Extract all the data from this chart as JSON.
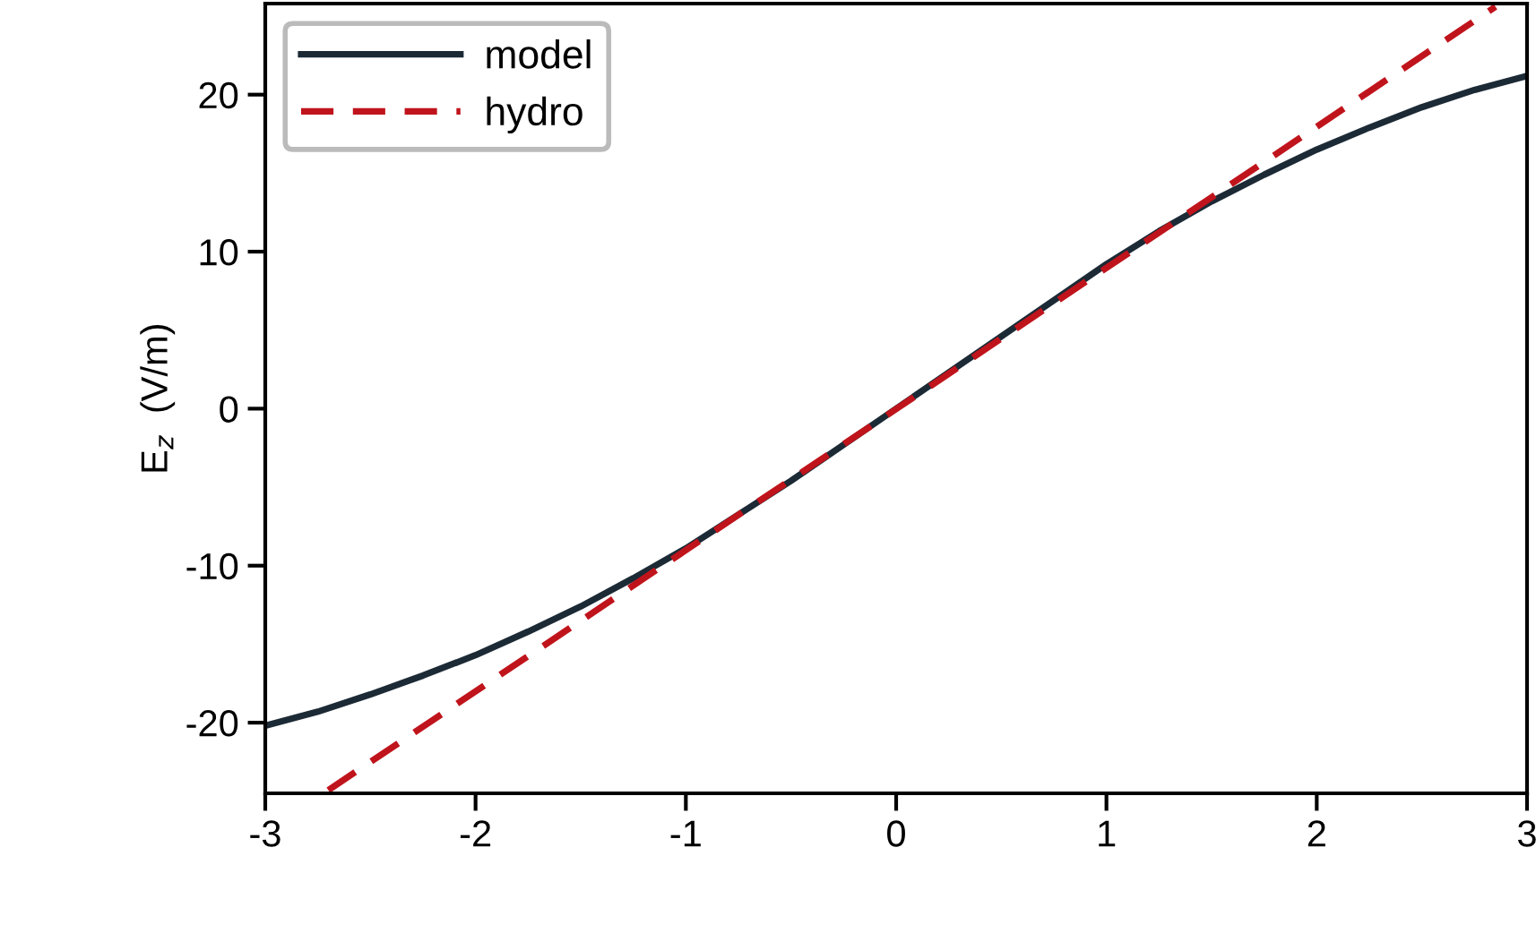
{
  "chart_data": {
    "type": "line",
    "ylabel": "E$_{z}$  (V/m)",
    "series": [
      {
        "name": "model",
        "color": "#1c2a36",
        "line_style": "solid",
        "x": [
          -3,
          -2.75,
          -2.5,
          -2.25,
          -2,
          -1.75,
          -1.5,
          -1.25,
          -1,
          -0.5,
          0,
          0.5,
          1,
          1.25,
          1.5,
          1.75,
          2,
          2.25,
          2.5,
          2.75,
          3
        ],
        "values": [
          -20.2,
          -19.3,
          -18.2,
          -17.0,
          -15.7,
          -14.2,
          -12.6,
          -10.8,
          -8.9,
          -4.6,
          0,
          4.6,
          9.2,
          11.3,
          13.2,
          14.9,
          16.5,
          17.9,
          19.2,
          20.3,
          21.2
        ]
      },
      {
        "name": "hydro",
        "color": "#c0141c",
        "line_style": "dashed",
        "x": [
          -2.7,
          2.85
        ],
        "values": [
          -24.3,
          25.6
        ]
      }
    ],
    "xlim": [
      -3,
      3
    ],
    "xticks": [
      -3,
      -2,
      -1,
      0,
      1,
      2,
      3
    ],
    "ylim": [
      -24.5,
      25.8
    ],
    "yticks": [
      -20,
      -10,
      0,
      10,
      20
    ],
    "grid": false,
    "legend": "top left",
    "marker": "none"
  }
}
